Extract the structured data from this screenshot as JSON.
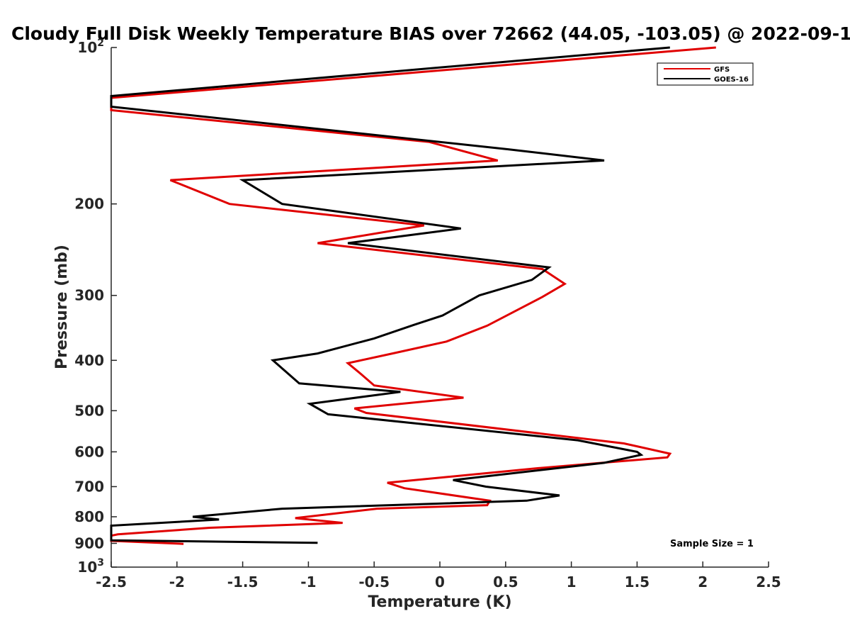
{
  "chart_data": {
    "type": "line",
    "title": "Cloudy Full Disk Weekly Temperature BIAS over 72662 (44.05, -103.05) @ 2022-09-1",
    "xlabel": "Temperature (K)",
    "ylabel": "Pressure (mb)",
    "xlim": [
      -2.5,
      2.5
    ],
    "ylim": [
      100,
      1000
    ],
    "y_scale": "log",
    "y_reversed": true,
    "xticks": [
      "-2.5",
      "-2",
      "-1.5",
      "-1",
      "-0.5",
      "0",
      "0.5",
      "1",
      "1.5",
      "2",
      "2.5"
    ],
    "xtick_values": [
      -2.5,
      -2,
      -1.5,
      -1,
      -0.5,
      0,
      0.5,
      1,
      1.5,
      2,
      2.5
    ],
    "yticks": [
      "200",
      "300",
      "400",
      "500",
      "600",
      "700",
      "800",
      "900"
    ],
    "ytick_values": [
      200,
      300,
      400,
      500,
      600,
      700,
      800,
      900
    ],
    "ytick_top": {
      "base": "10",
      "exp": "2",
      "value": 100
    },
    "ytick_bottom": {
      "base": "10",
      "exp": "3",
      "value": 1000
    },
    "legend": "top-right",
    "grid": false,
    "annotation": "Sample Size = 1",
    "series": [
      {
        "name": "GFS",
        "color": "#e00000",
        "points": [
          [
            2.1,
            100
          ],
          [
            -2.5,
            125
          ],
          [
            -2.5,
            132
          ],
          [
            -0.08,
            152
          ],
          [
            0.44,
            165
          ],
          [
            -2.05,
            180
          ],
          [
            -1.6,
            200
          ],
          [
            -0.12,
            220
          ],
          [
            -0.93,
            238
          ],
          [
            0.78,
            267
          ],
          [
            0.95,
            285
          ],
          [
            0.78,
            302
          ],
          [
            0.36,
            343
          ],
          [
            0.05,
            368
          ],
          [
            -0.36,
            388
          ],
          [
            -0.7,
            405
          ],
          [
            -0.6,
            425
          ],
          [
            -0.5,
            447
          ],
          [
            0.18,
            472
          ],
          [
            -0.65,
            495
          ],
          [
            -0.56,
            505
          ],
          [
            1.4,
            578
          ],
          [
            1.75,
            605
          ],
          [
            1.73,
            615
          ],
          [
            0.75,
            645
          ],
          [
            -0.4,
            688
          ],
          [
            -0.27,
            705
          ],
          [
            0.38,
            745
          ],
          [
            0.36,
            760
          ],
          [
            -0.48,
            772
          ],
          [
            -1.1,
            805
          ],
          [
            -0.74,
            822
          ],
          [
            -1.75,
            840
          ],
          [
            -2.45,
            865
          ],
          [
            -2.5,
            870
          ],
          [
            -2.5,
            890
          ],
          [
            -1.95,
            902
          ]
        ]
      },
      {
        "name": "GOES-16",
        "color": "#000000",
        "points": [
          [
            1.75,
            100
          ],
          [
            -2.5,
            124
          ],
          [
            -2.5,
            130
          ],
          [
            0.52,
            157
          ],
          [
            1.25,
            165
          ],
          [
            -1.5,
            180
          ],
          [
            -1.2,
            200
          ],
          [
            0.16,
            223
          ],
          [
            -0.7,
            238
          ],
          [
            0.83,
            265
          ],
          [
            0.7,
            280
          ],
          [
            0.3,
            300
          ],
          [
            0.02,
            328
          ],
          [
            -0.2,
            342
          ],
          [
            -0.5,
            363
          ],
          [
            -0.93,
            388
          ],
          [
            -1.27,
            400
          ],
          [
            -1.07,
            443
          ],
          [
            -0.3,
            460
          ],
          [
            -0.99,
            485
          ],
          [
            -0.85,
            508
          ],
          [
            1.05,
            570
          ],
          [
            1.5,
            600
          ],
          [
            1.53,
            608
          ],
          [
            1.25,
            630
          ],
          [
            0.1,
            680
          ],
          [
            0.35,
            700
          ],
          [
            0.91,
            728
          ],
          [
            0.66,
            745
          ],
          [
            -1.2,
            772
          ],
          [
            -1.88,
            800
          ],
          [
            -1.68,
            810
          ],
          [
            -2.5,
            832
          ],
          [
            -2.5,
            888
          ],
          [
            -0.93,
            898
          ]
        ]
      }
    ]
  }
}
